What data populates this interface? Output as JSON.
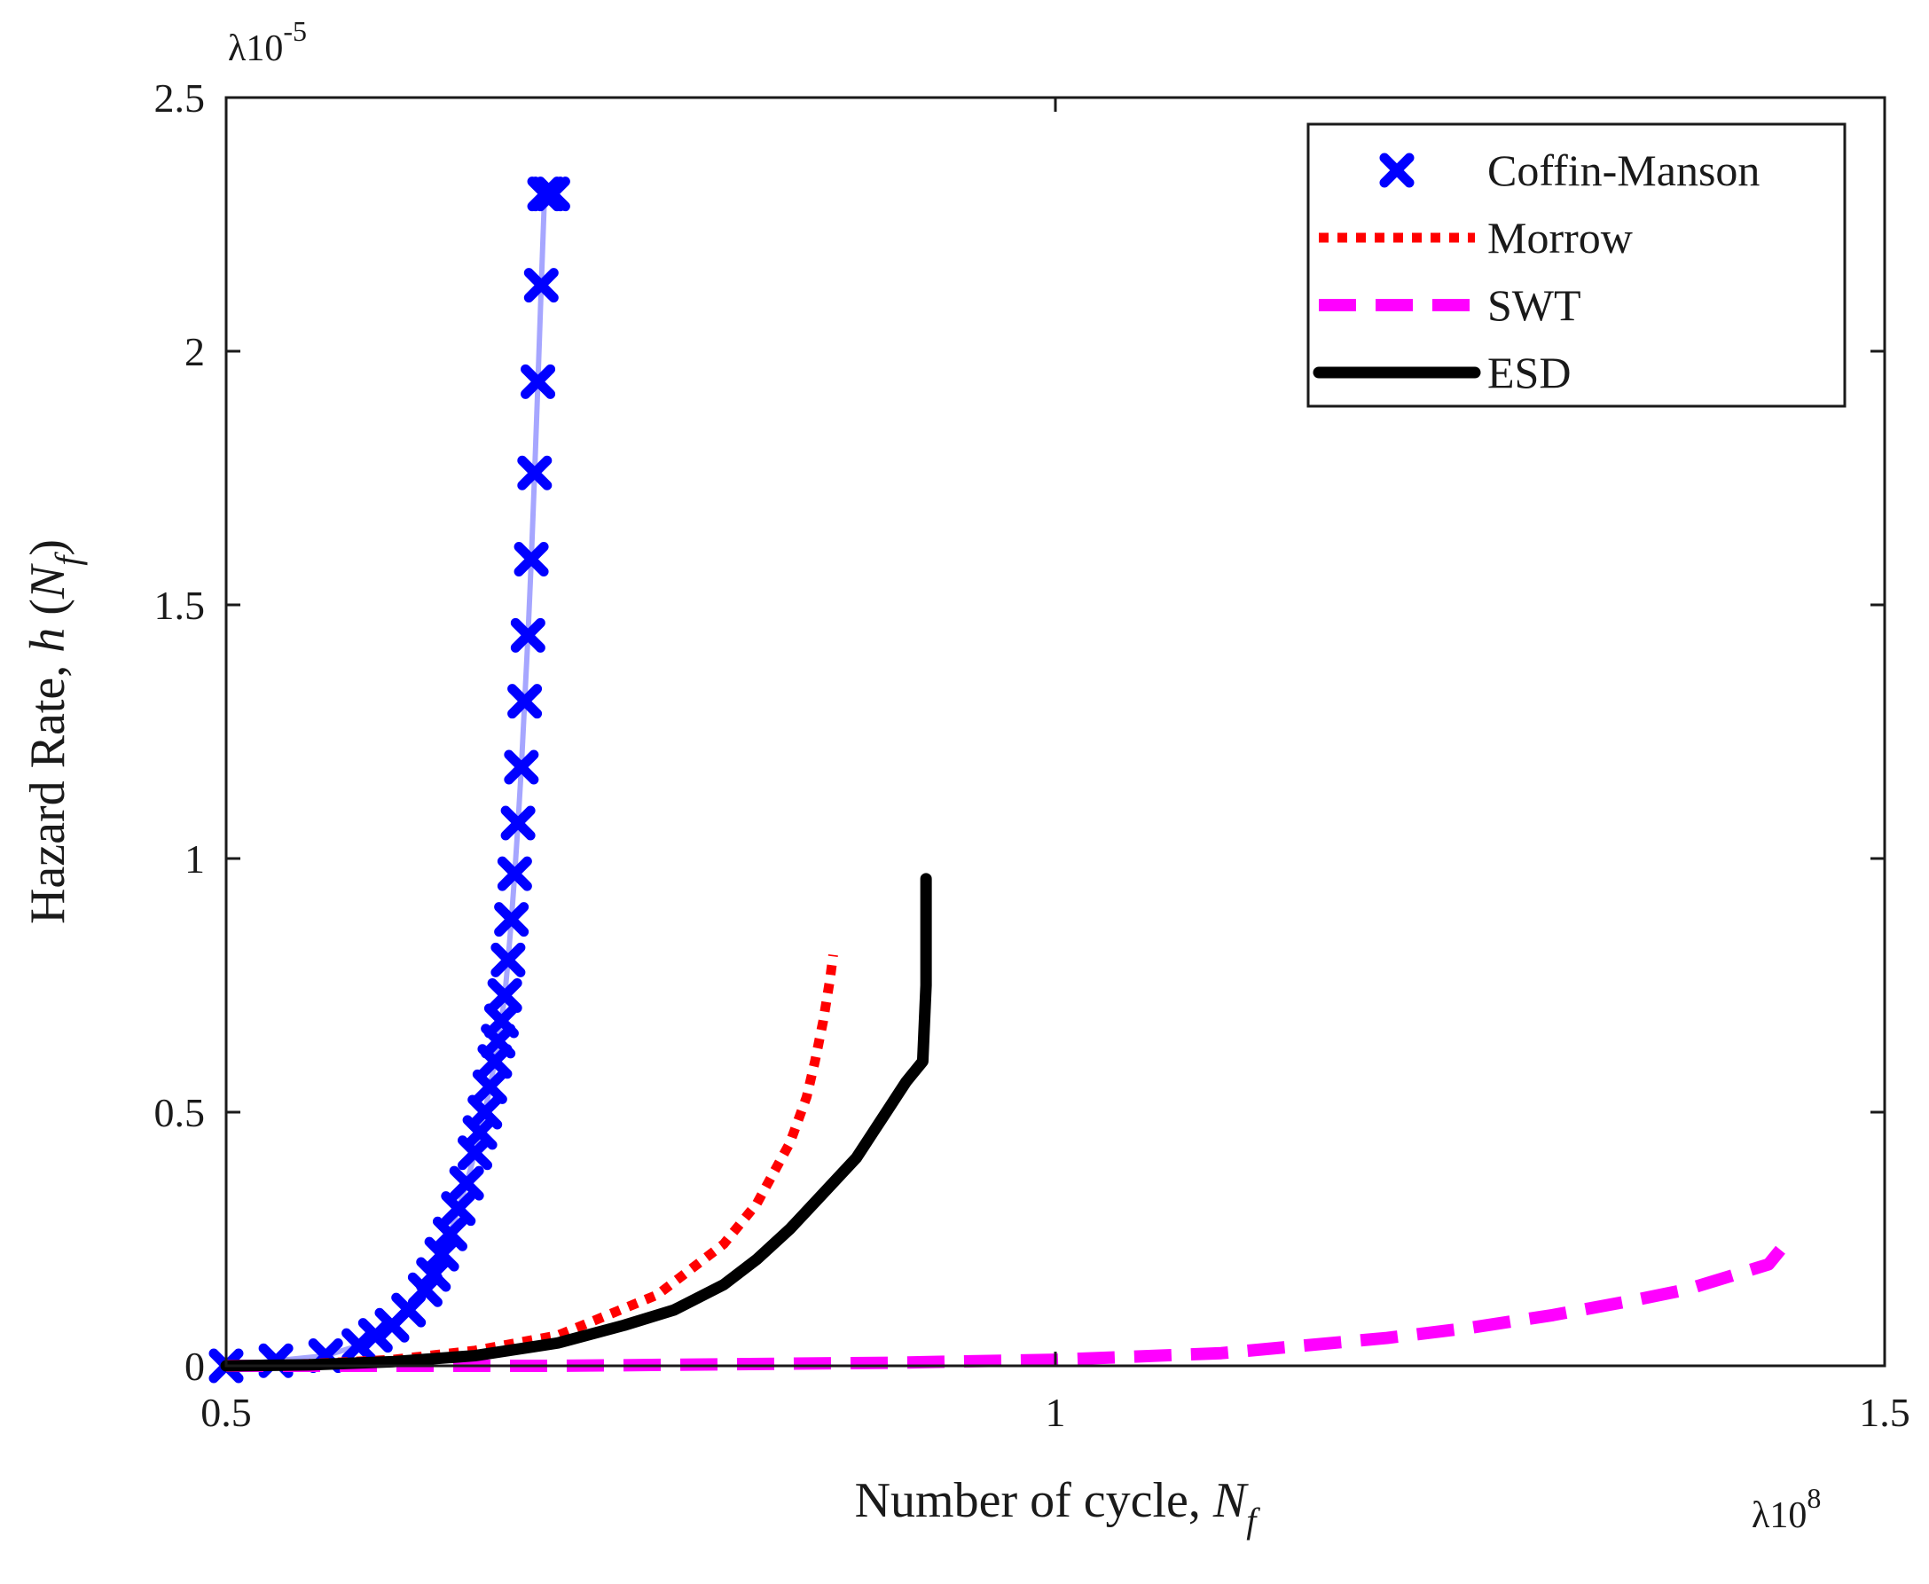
{
  "chart_data": {
    "type": "line",
    "xlabel": "Number of cycle,",
    "xlabel_symbol": "N",
    "xlabel_subscript": "f",
    "ylabel": "Hazard Rate,",
    "ylabel_symbol": "h",
    "ylabel_arg": "N",
    "ylabel_arg_subscript": "f",
    "x_multiplier": "λ10",
    "x_multiplier_exp": "8",
    "y_multiplier": "λ10",
    "y_multiplier_exp": "-5",
    "xlim": [
      0.5,
      1.5
    ],
    "ylim": [
      0,
      2.5
    ],
    "x_ticks": [
      0.5,
      1,
      1.5
    ],
    "x_tick_labels": [
      "0.5",
      "1",
      "1.5"
    ],
    "y_ticks": [
      0,
      0.5,
      1,
      1.5,
      2,
      2.5
    ],
    "y_tick_labels": [
      "0",
      "0.5",
      "1",
      "1.5",
      "2",
      "2.5"
    ],
    "grid": false,
    "legend_position": "top-right",
    "series": [
      {
        "name": "Coffin-Manson",
        "style": "x-markers",
        "color": "#0000ff",
        "x": [
          0.5,
          0.53,
          0.56,
          0.58,
          0.59,
          0.6,
          0.61,
          0.62,
          0.625,
          0.63,
          0.635,
          0.64,
          0.645,
          0.65,
          0.653,
          0.656,
          0.659,
          0.662,
          0.664,
          0.666,
          0.668,
          0.67,
          0.672,
          0.674,
          0.676,
          0.678,
          0.68,
          0.682,
          0.684,
          0.686,
          0.688,
          0.69,
          0.692,
          0.694,
          0.697
        ],
        "y": [
          0.0,
          0.01,
          0.02,
          0.04,
          0.06,
          0.08,
          0.11,
          0.15,
          0.18,
          0.22,
          0.26,
          0.31,
          0.36,
          0.42,
          0.46,
          0.5,
          0.55,
          0.6,
          0.64,
          0.68,
          0.73,
          0.8,
          0.88,
          0.97,
          1.07,
          1.18,
          1.31,
          1.44,
          1.59,
          1.76,
          1.94,
          2.13,
          2.31,
          2.31,
          2.31
        ]
      },
      {
        "name": "Morrow",
        "style": "dotted",
        "color": "#ff0000",
        "x": [
          0.5,
          0.55,
          0.6,
          0.65,
          0.7,
          0.73,
          0.76,
          0.78,
          0.8,
          0.82,
          0.83,
          0.84,
          0.85,
          0.855,
          0.86,
          0.864,
          0.866
        ],
        "y": [
          0.0,
          0.004,
          0.012,
          0.03,
          0.06,
          0.1,
          0.14,
          0.19,
          0.24,
          0.32,
          0.38,
          0.44,
          0.53,
          0.6,
          0.68,
          0.76,
          0.81
        ]
      },
      {
        "name": "SWT",
        "style": "dashed",
        "color": "#ff00ff",
        "x": [
          0.5,
          0.6,
          0.7,
          0.8,
          0.9,
          1.0,
          1.1,
          1.15,
          1.2,
          1.25,
          1.3,
          1.35,
          1.38,
          1.4,
          1.42,
          1.43,
          1.44
        ],
        "y": [
          0.0,
          0.0,
          0.0,
          0.003,
          0.006,
          0.012,
          0.025,
          0.04,
          0.055,
          0.075,
          0.1,
          0.13,
          0.15,
          0.17,
          0.19,
          0.2,
          0.24
        ]
      },
      {
        "name": "ESD",
        "style": "solid",
        "color": "#000000",
        "x": [
          0.5,
          0.55,
          0.6,
          0.65,
          0.7,
          0.74,
          0.77,
          0.8,
          0.82,
          0.84,
          0.86,
          0.88,
          0.89,
          0.9,
          0.91,
          0.92,
          0.922,
          0.922
        ],
        "y": [
          0.0,
          0.002,
          0.008,
          0.02,
          0.045,
          0.08,
          0.11,
          0.16,
          0.21,
          0.27,
          0.34,
          0.41,
          0.46,
          0.51,
          0.56,
          0.6,
          0.75,
          0.96
        ]
      }
    ]
  }
}
